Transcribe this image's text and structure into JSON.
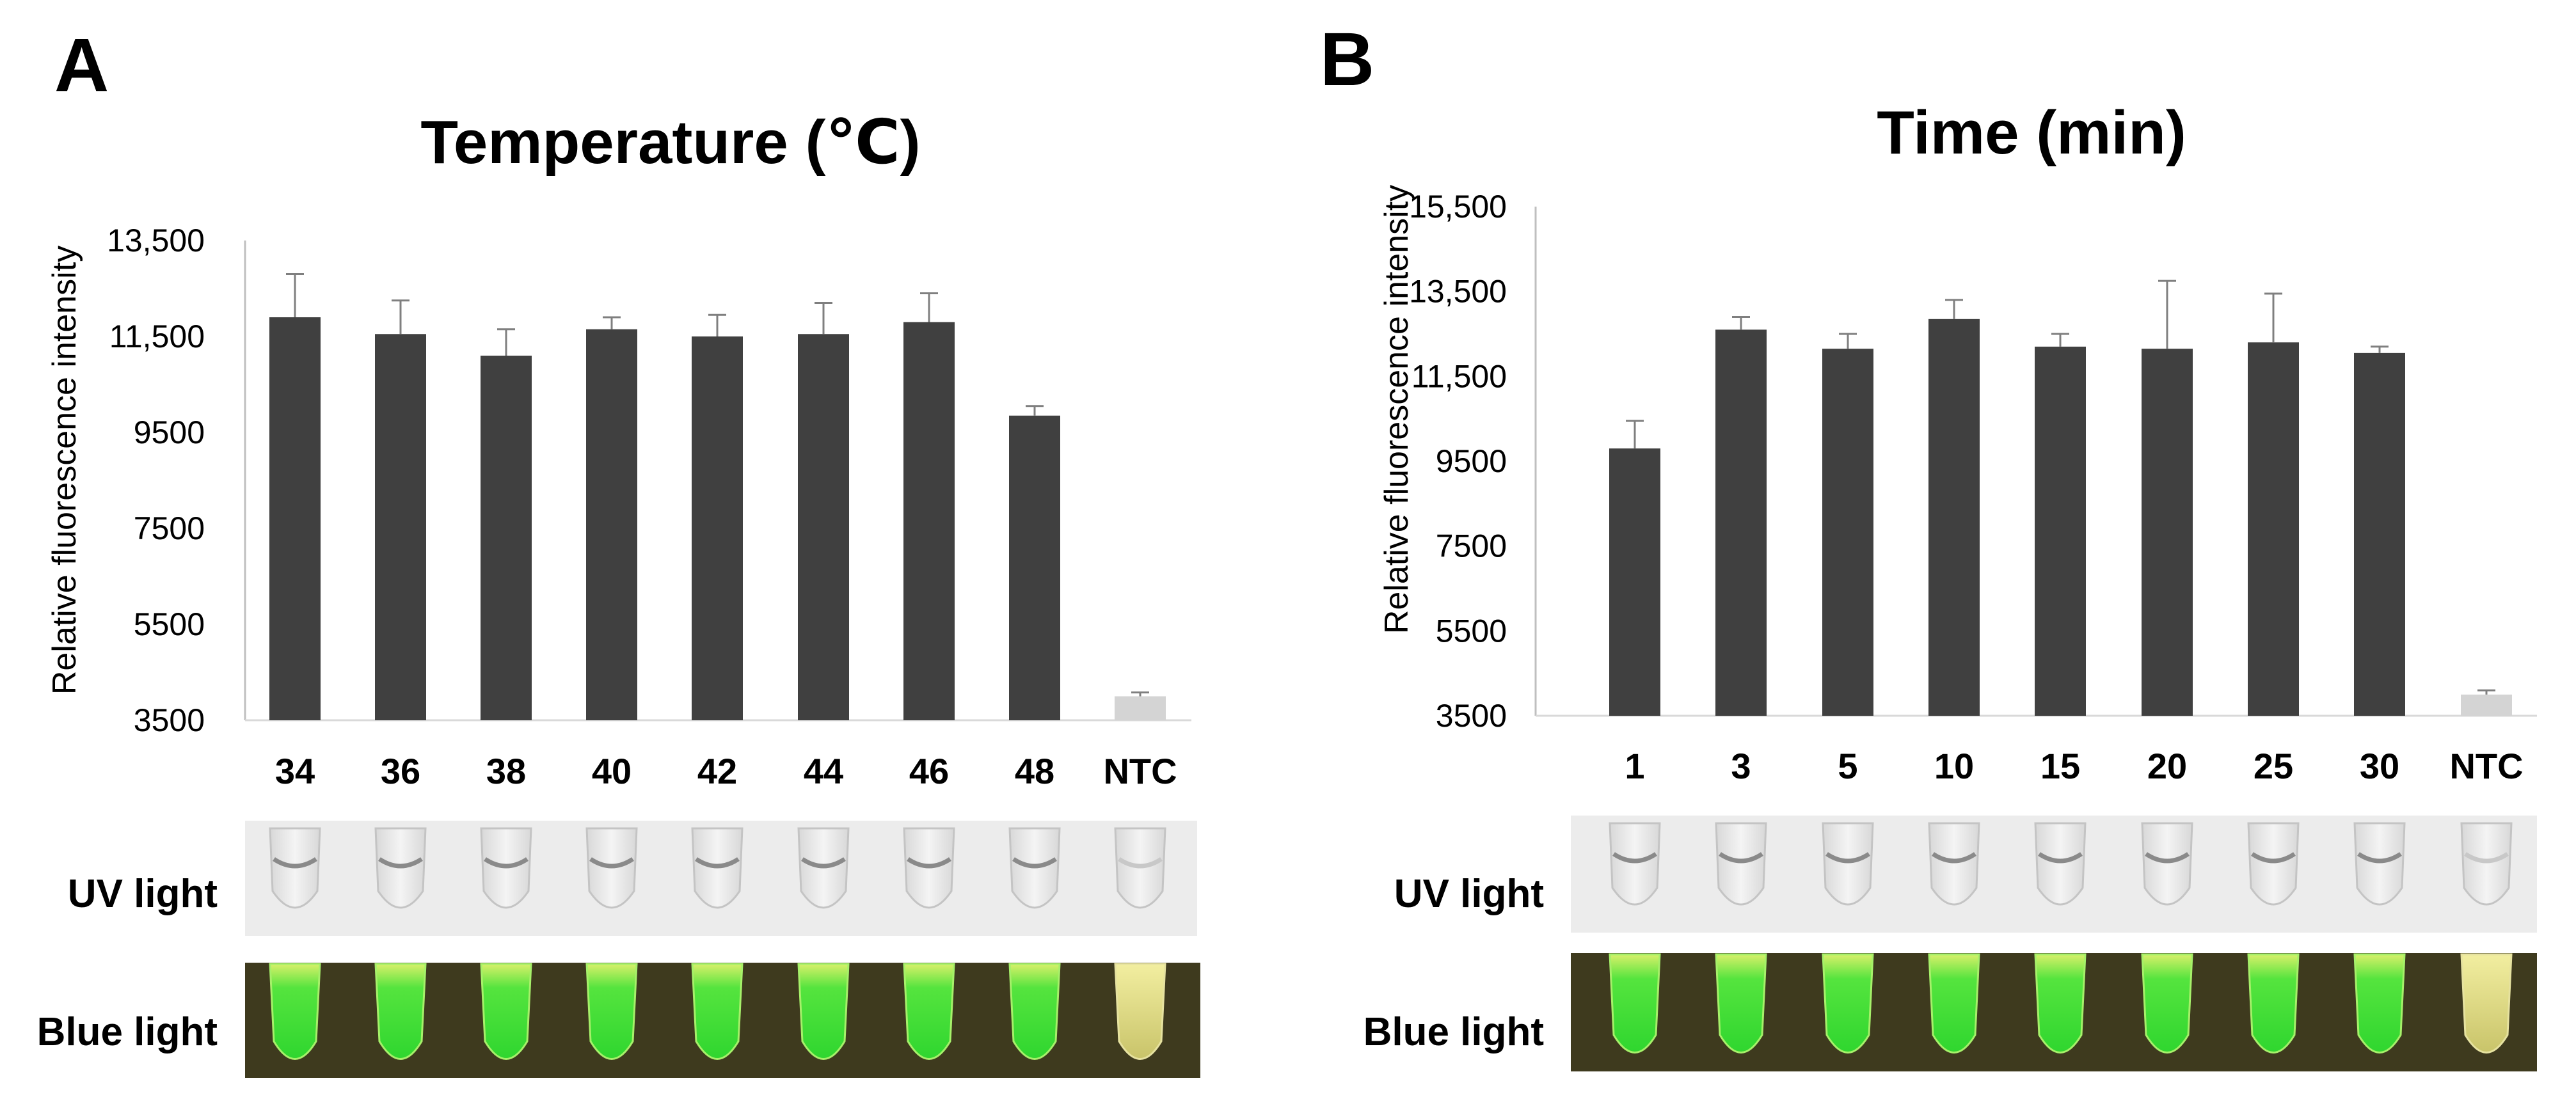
{
  "panels": [
    {
      "letter": "A",
      "chart_title": "Temperature (℃)",
      "uv_label": "UV light",
      "blue_label": "Blue light"
    },
    {
      "letter": "B",
      "chart_title": "Time (min)",
      "uv_label": "UV light",
      "blue_label": "Blue light"
    }
  ],
  "chart_data": [
    {
      "type": "bar",
      "title": "Temperature (℃)",
      "xlabel": "",
      "ylabel": "Relative fluorescence intensity",
      "ylim": [
        3500,
        13500
      ],
      "yticks": [
        3500,
        5500,
        7500,
        9500,
        11500,
        13500
      ],
      "ytick_labels": [
        "3500",
        "5500",
        "7500",
        "9500",
        "11,500",
        "13,500"
      ],
      "categories": [
        "34",
        "36",
        "38",
        "40",
        "42",
        "44",
        "46",
        "48",
        "NTC"
      ],
      "values": [
        11900,
        11550,
        11100,
        11650,
        11500,
        11550,
        11800,
        9850,
        4000
      ],
      "errors": [
        900,
        700,
        550,
        250,
        450,
        650,
        600,
        200,
        80
      ],
      "colors": [
        "#404040",
        "#404040",
        "#404040",
        "#404040",
        "#404040",
        "#404040",
        "#404040",
        "#404040",
        "#d4d4d4"
      ],
      "grid": false
    },
    {
      "type": "bar",
      "title": "Time (min)",
      "xlabel": "",
      "ylabel": "Relative fluorescence intensity",
      "ylim": [
        3500,
        15500
      ],
      "yticks": [
        3500,
        5500,
        7500,
        9500,
        11500,
        13500,
        15500
      ],
      "ytick_labels": [
        "3500",
        "5500",
        "7500",
        "9500",
        "11,500",
        "13,500",
        "15,500"
      ],
      "categories": [
        "1",
        "3",
        "5",
        "10",
        "15",
        "20",
        "25",
        "30",
        "NTC"
      ],
      "values": [
        9800,
        12600,
        12150,
        12850,
        12200,
        12150,
        12300,
        12050,
        4000
      ],
      "errors": [
        650,
        300,
        350,
        450,
        300,
        1600,
        1150,
        150,
        100
      ],
      "colors": [
        "#404040",
        "#404040",
        "#404040",
        "#404040",
        "#404040",
        "#404040",
        "#404040",
        "#404040",
        "#d4d4d4"
      ],
      "grid": false
    }
  ],
  "tubes": {
    "uv_row_color": "#ececec",
    "blue_row_color": "#3e3a1e",
    "positive_fluor_color": "#3ae83a",
    "ntc_fluor_color": "#d9d98c"
  }
}
